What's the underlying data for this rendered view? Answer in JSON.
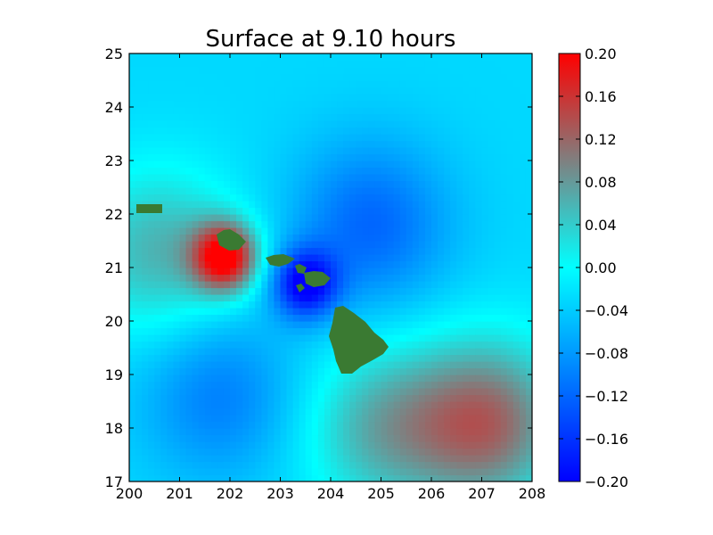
{
  "chart_data": {
    "type": "heatmap",
    "title": "Surface at 9.10 hours",
    "xlabel": "",
    "ylabel": "",
    "xlim": [
      200,
      208
    ],
    "ylim": [
      17,
      25
    ],
    "x_ticks": [
      "200",
      "201",
      "202",
      "203",
      "204",
      "205",
      "206",
      "207",
      "208"
    ],
    "y_ticks": [
      "17",
      "18",
      "19",
      "20",
      "21",
      "22",
      "23",
      "24",
      "25"
    ],
    "colorbar": {
      "vmin": -0.2,
      "vmax": 0.2,
      "ticks": [
        "−0.20",
        "−0.16",
        "−0.12",
        "−0.08",
        "−0.04",
        "0.00",
        "0.04",
        "0.08",
        "0.12",
        "0.16",
        "0.20"
      ],
      "colors": [
        "#0000ff",
        "#00ffff",
        "#ff0000"
      ]
    },
    "land_color": "#3a7a32",
    "features": [
      {
        "name": "positive-lobe-west",
        "x": 201.9,
        "y": 21.2,
        "value": 0.2
      },
      {
        "name": "negative-lobe-channel",
        "x": 203.5,
        "y": 20.7,
        "value": -0.2
      },
      {
        "name": "negative-zone-northeast",
        "x": 204.8,
        "y": 21.8,
        "value": -0.12
      },
      {
        "name": "negative-zone-southwest",
        "x": 201.8,
        "y": 18.6,
        "value": -0.1
      },
      {
        "name": "positive-zone-southeast",
        "x": 207.1,
        "y": 18.1,
        "value": 0.12
      },
      {
        "name": "positive-zone-south",
        "x": 205.0,
        "y": 18.0,
        "value": 0.06
      },
      {
        "name": "positive-zone-west",
        "x": 200.6,
        "y": 21.3,
        "value": 0.06
      }
    ],
    "grid": false
  }
}
